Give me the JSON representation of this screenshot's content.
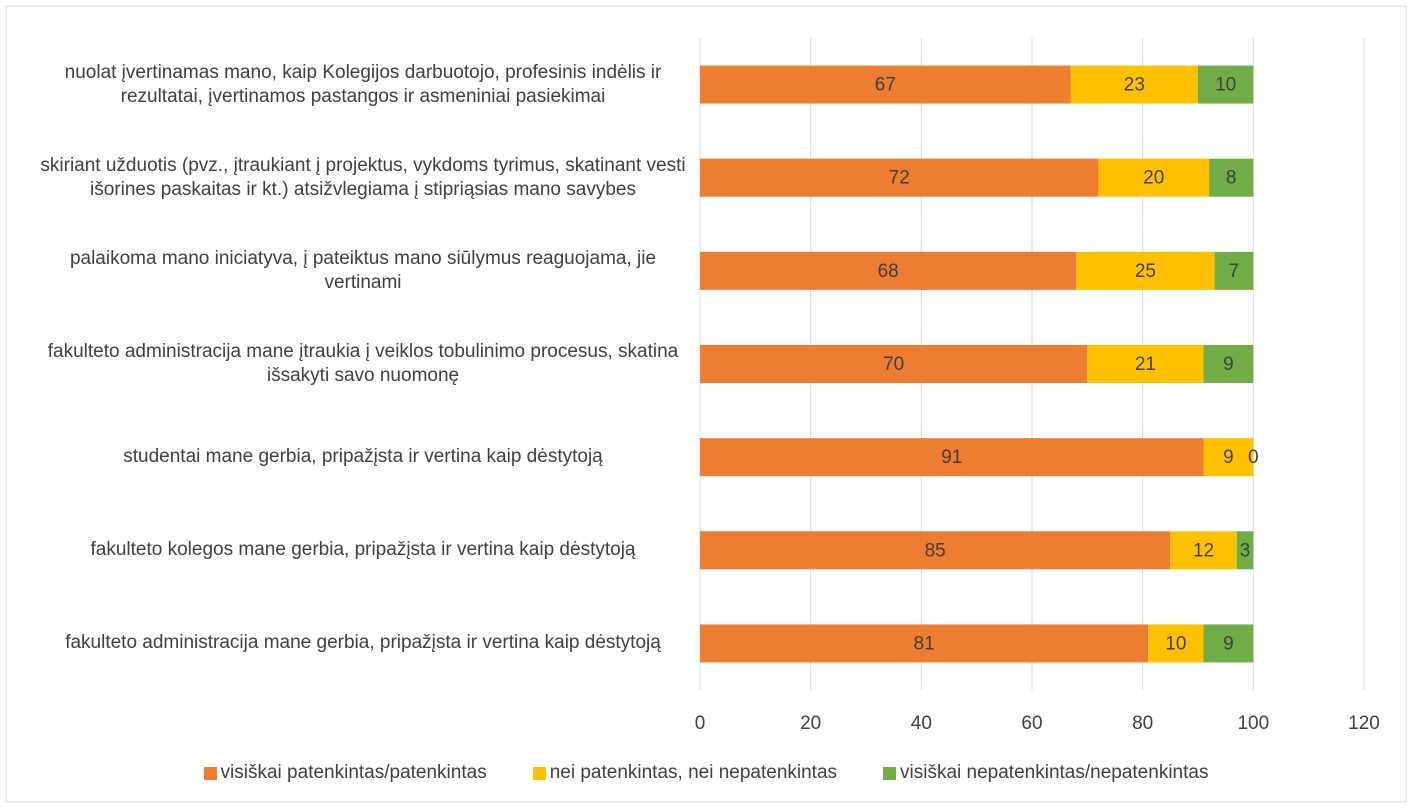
{
  "chart_data": {
    "type": "stacked_barh",
    "categories": [
      "nuolat įvertinamas mano, kaip Kolegijos darbuotojo, profesinis indėlis ir rezultatai, įvertinamos pastangos ir asmeniniai pasiekimai",
      "skiriant užduotis (pvz., įtraukiant į projektus, vykdoms tyrimus, skatinant vesti išorines paskaitas ir kt.) atsižvlegiama į stipriąsias mano savybes",
      "palaikoma mano iniciatyva, į pateiktus mano siūlymus reaguojama, jie vertinami",
      "fakulteto administracija mane įtraukia į veiklos tobulinimo procesus, skatina išsakyti savo nuomonę",
      "studentai mane gerbia, pripažįsta ir vertina kaip dėstytoją",
      "fakulteto kolegos mane gerbia, pripažįsta ir vertina kaip dėstytoją",
      "fakulteto administracija mane gerbia, pripažįsta ir vertina kaip dėstytoją"
    ],
    "series": [
      {
        "name": "visiškai patenkintas/patenkintas",
        "color": "#ed7d31",
        "values": [
          67,
          72,
          68,
          70,
          91,
          85,
          81
        ]
      },
      {
        "name": "nei patenkintas, nei nepatenkintas",
        "color": "#ffc000",
        "values": [
          23,
          20,
          25,
          21,
          9,
          12,
          10
        ]
      },
      {
        "name": "visiškai nepatenkintas/nepatenkintas",
        "color": "#70ad47",
        "values": [
          10,
          8,
          7,
          9,
          0,
          3,
          9
        ]
      }
    ],
    "xlim": [
      0,
      120
    ],
    "xticks": [
      0,
      20,
      40,
      60,
      80,
      100,
      120
    ],
    "grid": true,
    "legend": "bottom"
  }
}
